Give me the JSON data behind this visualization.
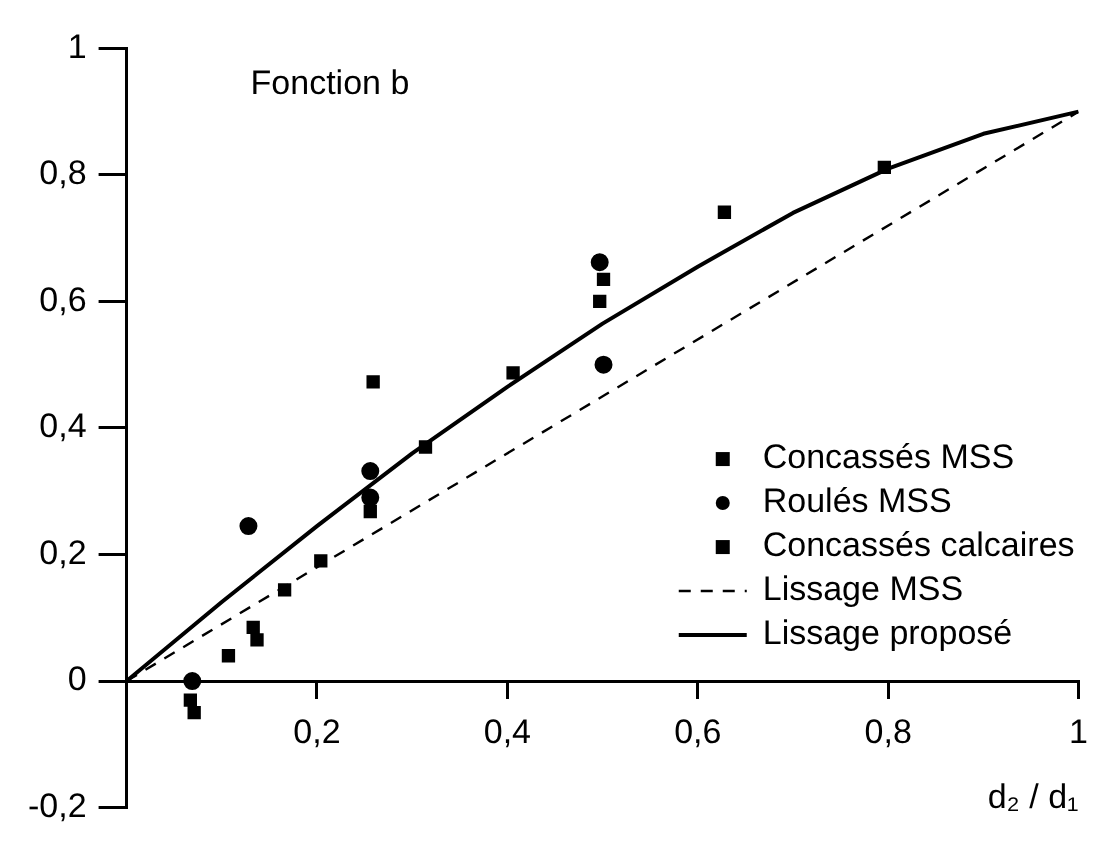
{
  "chart_data": {
    "type": "scatter",
    "title": "Fonction b",
    "xlabel": "d₂ / d₁",
    "xlim": [
      0,
      1
    ],
    "ylim": [
      -0.2,
      1
    ],
    "xticks": [
      {
        "value": 0.2,
        "label": "0,2"
      },
      {
        "value": 0.4,
        "label": "0,4"
      },
      {
        "value": 0.6,
        "label": "0,6"
      },
      {
        "value": 0.8,
        "label": "0,8"
      },
      1
    ],
    "yticks": [
      {
        "value": -0.2,
        "label": "-0,2"
      },
      0,
      {
        "value": 0.2,
        "label": "0,2"
      },
      {
        "value": 0.4,
        "label": "0,4"
      },
      {
        "value": 0.6,
        "label": "0,6"
      },
      {
        "value": 0.8,
        "label": "0,8"
      },
      1
    ],
    "grid": false,
    "legend": "bottom right",
    "series": [
      {
        "name": "Concassés MSS",
        "type": "scatter",
        "marker": "square",
        "color": "#000000",
        "x": [
          0.067,
          0.071,
          0.256,
          0.259,
          0.501,
          0.497
        ],
        "values": [
          -0.03,
          -0.05,
          0.268,
          0.473,
          0.635,
          0.6
        ]
      },
      {
        "name": "Roulés MSS",
        "type": "scatter",
        "marker": "circle",
        "color": "#000000",
        "x": [
          0.069,
          0.128,
          0.256,
          0.256,
          0.497,
          0.501
        ],
        "values": [
          0,
          0.245,
          0.332,
          0.29,
          0.662,
          0.5
        ]
      },
      {
        "name": "Concassés calcaires",
        "type": "scatter",
        "marker": "square",
        "color": "#000000",
        "x": [
          0.107,
          0.133,
          0.137,
          0.166,
          0.204,
          0.314,
          0.406,
          0.628,
          0.796
        ],
        "values": [
          0.04,
          0.085,
          0.065,
          0.144,
          0.19,
          0.37,
          0.487,
          0.741,
          0.812
        ]
      },
      {
        "name": "Lissage MSS",
        "type": "line",
        "line_style": "dashed",
        "marker": "none",
        "color": "#000000",
        "x": [
          0,
          1
        ],
        "values": [
          0,
          0.9
        ]
      },
      {
        "name": "Lissage proposé",
        "type": "line",
        "line_style": "solid",
        "marker": "none",
        "color": "#000000",
        "x": [
          0,
          0.1,
          0.2,
          0.3,
          0.4,
          0.5,
          0.6,
          0.7,
          0.8,
          0.9,
          1
        ],
        "values": [
          0,
          0.125,
          0.245,
          0.36,
          0.465,
          0.565,
          0.655,
          0.74,
          0.81,
          0.865,
          0.9
        ]
      }
    ]
  }
}
